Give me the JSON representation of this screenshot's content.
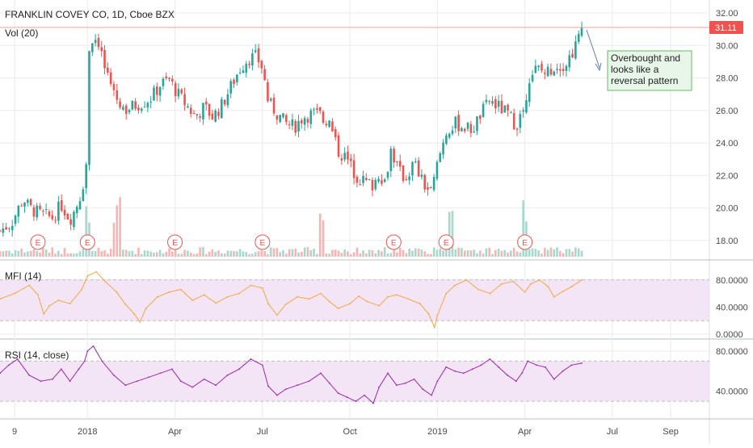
{
  "colors": {
    "up": "#26a69a",
    "down": "#ef5350",
    "grid": "#e9ebf0",
    "axis_text": "#4a4a4a",
    "price_line": "#f0a0a0",
    "price_tag": "#ef5350",
    "vol_up": "#a8d8cc",
    "vol_down": "#f5b5b3",
    "earnings": "#ef5350",
    "mfi_line": "#f5a742",
    "rsi_line": "#9c27b0",
    "band_fill": "#f3e5f5",
    "band_line": "#bdbdbd",
    "annotation_bg": "#e8f5e9",
    "annotation_border": "#66bb6a",
    "arrow": "#5c7fb5"
  },
  "header": {
    "title": "FRANKLIN COVEY CO, 1D, Cboe BZX",
    "volume_label": "Vol (20)"
  },
  "price_tag": "31.11",
  "annotation": {
    "lines": [
      "Overbought and",
      "looks like a",
      "reversal pattern"
    ]
  },
  "earnings_marker": "E",
  "x_axis": {
    "ticks": [
      {
        "label": "9",
        "t": 0.5
      },
      {
        "label": "2018",
        "t": 3.0
      },
      {
        "label": "Apr",
        "t": 6.0
      },
      {
        "label": "Jul",
        "t": 9.0
      },
      {
        "label": "Oct",
        "t": 12.0
      },
      {
        "label": "2019",
        "t": 15.0
      },
      {
        "label": "Apr",
        "t": 18.0
      },
      {
        "label": "Jul",
        "t": 21.0
      },
      {
        "label": "Sep",
        "t": 23.0
      }
    ]
  },
  "chart_data": [
    {
      "type": "candlestick",
      "title": "FRANKLIN COVEY CO, 1D, Cboe BZX",
      "x_unit": "months since Oct 2017 (0 = start)",
      "y_ticks": [
        18,
        20,
        22,
        24,
        26,
        28,
        30,
        32
      ],
      "ylim": [
        17.0,
        32.4
      ],
      "last_price": 31.11,
      "close_series": [
        [
          0.0,
          18.6
        ],
        [
          0.4,
          19.1
        ],
        [
          0.8,
          20.6
        ],
        [
          1.0,
          20.0
        ],
        [
          1.4,
          19.6
        ],
        [
          1.8,
          19.4
        ],
        [
          2.1,
          20.2
        ],
        [
          2.4,
          19.3
        ],
        [
          2.6,
          20.0
        ],
        [
          2.8,
          21.0
        ],
        [
          2.95,
          22.5
        ],
        [
          3.0,
          24.6
        ],
        [
          3.05,
          29.8
        ],
        [
          3.2,
          30.6
        ],
        [
          3.4,
          30.2
        ],
        [
          3.6,
          28.5
        ],
        [
          3.8,
          27.2
        ],
        [
          4.0,
          26.8
        ],
        [
          4.3,
          26.0
        ],
        [
          4.6,
          26.3
        ],
        [
          4.9,
          26.5
        ],
        [
          5.2,
          26.8
        ],
        [
          5.5,
          27.6
        ],
        [
          5.8,
          27.9
        ],
        [
          6.1,
          27.0
        ],
        [
          6.4,
          26.3
        ],
        [
          6.7,
          25.6
        ],
        [
          7.0,
          26.2
        ],
        [
          7.3,
          25.6
        ],
        [
          7.6,
          26.3
        ],
        [
          7.9,
          27.4
        ],
        [
          8.2,
          28.5
        ],
        [
          8.5,
          29.2
        ],
        [
          8.8,
          29.3
        ],
        [
          9.0,
          28.6
        ],
        [
          9.2,
          26.5
        ],
        [
          9.5,
          25.8
        ],
        [
          9.8,
          25.2
        ],
        [
          10.1,
          25.0
        ],
        [
          10.4,
          25.6
        ],
        [
          10.7,
          25.8
        ],
        [
          11.0,
          25.7
        ],
        [
          11.3,
          25.2
        ],
        [
          11.6,
          23.5
        ],
        [
          11.9,
          23.0
        ],
        [
          12.2,
          22.0
        ],
        [
          12.5,
          21.6
        ],
        [
          12.8,
          21.4
        ],
        [
          13.0,
          22.2
        ],
        [
          13.2,
          21.6
        ],
        [
          13.4,
          23.6
        ],
        [
          13.7,
          22.2
        ],
        [
          13.9,
          21.8
        ],
        [
          14.2,
          22.8
        ],
        [
          14.5,
          21.5
        ],
        [
          14.8,
          20.9
        ],
        [
          15.0,
          22.7
        ],
        [
          15.3,
          24.7
        ],
        [
          15.6,
          25.2
        ],
        [
          15.9,
          25.0
        ],
        [
          16.2,
          24.8
        ],
        [
          16.5,
          25.8
        ],
        [
          16.8,
          26.6
        ],
        [
          17.1,
          26.2
        ],
        [
          17.4,
          25.8
        ],
        [
          17.7,
          25.1
        ],
        [
          17.9,
          25.8
        ],
        [
          18.0,
          26.1
        ],
        [
          18.1,
          28.0
        ],
        [
          18.4,
          28.6
        ],
        [
          18.7,
          28.3
        ],
        [
          19.0,
          28.7
        ],
        [
          19.2,
          28.8
        ],
        [
          19.4,
          28.9
        ],
        [
          19.6,
          29.5
        ],
        [
          19.8,
          30.2
        ],
        [
          19.95,
          31.11
        ]
      ],
      "volume_spikes": [
        3.0,
        4.0,
        11.0,
        15.5,
        18.0
      ],
      "earnings_dates": [
        1.3,
        3.0,
        6.0,
        9.0,
        13.5,
        15.3,
        18.0
      ]
    },
    {
      "type": "line",
      "name": "MFI (14)",
      "label": "MFI (14)",
      "y_ticks": [
        "80.0000",
        "40.0000",
        "0.0000"
      ],
      "ylim": [
        0,
        100
      ],
      "bands": [
        20,
        80
      ],
      "series": [
        [
          0.0,
          52
        ],
        [
          0.5,
          60
        ],
        [
          1.0,
          72
        ],
        [
          1.3,
          58
        ],
        [
          1.5,
          30
        ],
        [
          1.7,
          42
        ],
        [
          2.0,
          50
        ],
        [
          2.4,
          45
        ],
        [
          2.8,
          66
        ],
        [
          3.0,
          86
        ],
        [
          3.3,
          92
        ],
        [
          3.6,
          78
        ],
        [
          4.0,
          62
        ],
        [
          4.3,
          44
        ],
        [
          4.6,
          30
        ],
        [
          4.8,
          18
        ],
        [
          5.0,
          38
        ],
        [
          5.4,
          55
        ],
        [
          5.8,
          62
        ],
        [
          6.2,
          66
        ],
        [
          6.6,
          50
        ],
        [
          7.0,
          58
        ],
        [
          7.4,
          46
        ],
        [
          7.8,
          55
        ],
        [
          8.2,
          60
        ],
        [
          8.6,
          72
        ],
        [
          9.0,
          68
        ],
        [
          9.2,
          45
        ],
        [
          9.5,
          28
        ],
        [
          9.8,
          44
        ],
        [
          10.2,
          55
        ],
        [
          10.6,
          52
        ],
        [
          11.0,
          60
        ],
        [
          11.3,
          48
        ],
        [
          11.6,
          38
        ],
        [
          12.0,
          45
        ],
        [
          12.3,
          56
        ],
        [
          12.6,
          48
        ],
        [
          13.0,
          42
        ],
        [
          13.3,
          55
        ],
        [
          13.6,
          58
        ],
        [
          14.0,
          52
        ],
        [
          14.4,
          45
        ],
        [
          14.7,
          30
        ],
        [
          14.9,
          10
        ],
        [
          15.0,
          28
        ],
        [
          15.3,
          60
        ],
        [
          15.6,
          72
        ],
        [
          16.0,
          80
        ],
        [
          16.4,
          66
        ],
        [
          16.8,
          60
        ],
        [
          17.2,
          74
        ],
        [
          17.6,
          78
        ],
        [
          18.0,
          62
        ],
        [
          18.2,
          74
        ],
        [
          18.5,
          80
        ],
        [
          18.8,
          70
        ],
        [
          19.0,
          55
        ],
        [
          19.3,
          63
        ],
        [
          19.6,
          70
        ],
        [
          19.95,
          80
        ]
      ]
    },
    {
      "type": "line",
      "name": "RSI (14, close)",
      "label": "RSI (14, close)",
      "y_ticks": [
        "80.0000",
        "40.0000"
      ],
      "ylim": [
        18,
        88
      ],
      "bands": [
        30,
        70
      ],
      "series": [
        [
          0.0,
          58
        ],
        [
          0.3,
          66
        ],
        [
          0.6,
          72
        ],
        [
          1.0,
          56
        ],
        [
          1.4,
          50
        ],
        [
          1.8,
          52
        ],
        [
          2.1,
          62
        ],
        [
          2.4,
          50
        ],
        [
          2.7,
          62
        ],
        [
          2.9,
          70
        ],
        [
          3.0,
          80
        ],
        [
          3.2,
          85
        ],
        [
          3.5,
          70
        ],
        [
          3.9,
          56
        ],
        [
          4.3,
          46
        ],
        [
          4.7,
          50
        ],
        [
          5.1,
          54
        ],
        [
          5.5,
          58
        ],
        [
          5.9,
          62
        ],
        [
          6.2,
          50
        ],
        [
          6.6,
          44
        ],
        [
          7.0,
          52
        ],
        [
          7.4,
          46
        ],
        [
          7.8,
          56
        ],
        [
          8.2,
          62
        ],
        [
          8.6,
          72
        ],
        [
          9.0,
          66
        ],
        [
          9.2,
          45
        ],
        [
          9.5,
          36
        ],
        [
          9.8,
          42
        ],
        [
          10.2,
          46
        ],
        [
          10.6,
          50
        ],
        [
          11.0,
          58
        ],
        [
          11.3,
          48
        ],
        [
          11.6,
          38
        ],
        [
          11.9,
          34
        ],
        [
          12.2,
          30
        ],
        [
          12.5,
          36
        ],
        [
          12.8,
          28
        ],
        [
          13.0,
          44
        ],
        [
          13.3,
          58
        ],
        [
          13.6,
          46
        ],
        [
          13.9,
          48
        ],
        [
          14.2,
          52
        ],
        [
          14.5,
          42
        ],
        [
          14.8,
          36
        ],
        [
          15.0,
          50
        ],
        [
          15.3,
          64
        ],
        [
          15.6,
          60
        ],
        [
          15.9,
          58
        ],
        [
          16.2,
          62
        ],
        [
          16.5,
          66
        ],
        [
          16.8,
          72
        ],
        [
          17.1,
          64
        ],
        [
          17.4,
          56
        ],
        [
          17.7,
          50
        ],
        [
          17.9,
          58
        ],
        [
          18.1,
          70
        ],
        [
          18.4,
          66
        ],
        [
          18.7,
          64
        ],
        [
          19.0,
          52
        ],
        [
          19.3,
          60
        ],
        [
          19.6,
          66
        ],
        [
          19.95,
          68
        ]
      ]
    }
  ]
}
